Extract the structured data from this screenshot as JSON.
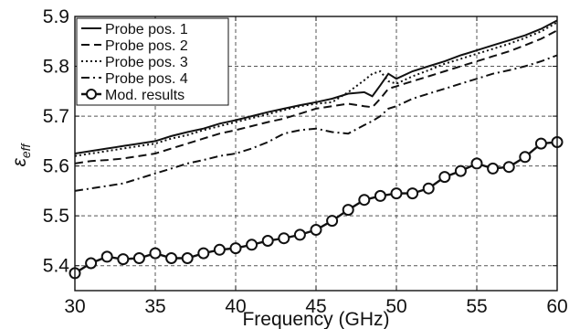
{
  "chart_data": {
    "type": "line",
    "xlabel": "Frequency (GHz)",
    "ylabel": {
      "main": "ε",
      "sub": "eff"
    },
    "xlim": [
      30,
      60
    ],
    "ylim": [
      5.35,
      5.9
    ],
    "xticks": [
      "30",
      "35",
      "40",
      "45",
      "50",
      "55",
      "60"
    ],
    "yticks": [
      "5.4",
      "5.5",
      "5.6",
      "5.7",
      "5.8",
      "5.9"
    ],
    "grid": true,
    "legend_position": "top-left",
    "series": [
      {
        "name": "Probe pos. 1",
        "style": "solid",
        "x": [
          30,
          31,
          32,
          33,
          34,
          35,
          36,
          37,
          38,
          39,
          40,
          41,
          42,
          43,
          44,
          45,
          46,
          47,
          48,
          48.5,
          49,
          49.5,
          50,
          51,
          52,
          53,
          54,
          55,
          56,
          57,
          58,
          59,
          60
        ],
        "values": [
          5.625,
          5.63,
          5.635,
          5.64,
          5.645,
          5.65,
          5.66,
          5.668,
          5.675,
          5.685,
          5.692,
          5.7,
          5.708,
          5.715,
          5.722,
          5.728,
          5.735,
          5.745,
          5.748,
          5.74,
          5.762,
          5.785,
          5.775,
          5.79,
          5.8,
          5.81,
          5.822,
          5.832,
          5.842,
          5.852,
          5.862,
          5.875,
          5.892
        ]
      },
      {
        "name": "Probe pos. 2",
        "style": "dashed",
        "x": [
          30,
          31,
          32,
          33,
          34,
          35,
          36,
          37,
          38,
          39,
          40,
          41,
          42,
          43,
          44,
          45,
          46,
          47,
          48,
          48.5,
          49,
          49.5,
          50,
          51,
          52,
          53,
          54,
          55,
          56,
          57,
          58,
          59,
          60
        ],
        "values": [
          5.605,
          5.61,
          5.612,
          5.615,
          5.62,
          5.625,
          5.635,
          5.645,
          5.655,
          5.665,
          5.672,
          5.68,
          5.688,
          5.695,
          5.705,
          5.715,
          5.72,
          5.725,
          5.72,
          5.718,
          5.735,
          5.755,
          5.76,
          5.77,
          5.78,
          5.79,
          5.8,
          5.81,
          5.82,
          5.83,
          5.842,
          5.855,
          5.872
        ]
      },
      {
        "name": "Probe pos. 3",
        "style": "dotted",
        "x": [
          30,
          31,
          32,
          33,
          34,
          35,
          36,
          37,
          38,
          39,
          40,
          41,
          42,
          43,
          44,
          45,
          46,
          47,
          48,
          48.5,
          49,
          49.5,
          50,
          51,
          52,
          53,
          54,
          55,
          56,
          57,
          58,
          59,
          60
        ],
        "values": [
          5.62,
          5.625,
          5.63,
          5.635,
          5.64,
          5.645,
          5.655,
          5.662,
          5.672,
          5.68,
          5.688,
          5.696,
          5.704,
          5.712,
          5.72,
          5.725,
          5.728,
          5.748,
          5.772,
          5.785,
          5.79,
          5.77,
          5.765,
          5.78,
          5.792,
          5.805,
          5.815,
          5.825,
          5.835,
          5.845,
          5.857,
          5.87,
          5.888
        ]
      },
      {
        "name": "Probe pos. 4",
        "style": "dashdot",
        "x": [
          30,
          31,
          32,
          33,
          34,
          35,
          36,
          37,
          38,
          39,
          40,
          41,
          42,
          43,
          44,
          45,
          46,
          47,
          48,
          48.5,
          49,
          49.5,
          50,
          51,
          52,
          53,
          54,
          55,
          56,
          57,
          58,
          59,
          60
        ],
        "values": [
          5.55,
          5.555,
          5.56,
          5.565,
          5.575,
          5.585,
          5.595,
          5.605,
          5.612,
          5.62,
          5.625,
          5.635,
          5.648,
          5.665,
          5.672,
          5.675,
          5.668,
          5.665,
          5.682,
          5.69,
          5.7,
          5.715,
          5.72,
          5.735,
          5.745,
          5.755,
          5.765,
          5.775,
          5.785,
          5.792,
          5.8,
          5.81,
          5.822
        ]
      },
      {
        "name": "Mod. results",
        "style": "markers",
        "x": [
          30,
          31,
          32,
          33,
          34,
          35,
          36,
          37,
          38,
          39,
          40,
          41,
          42,
          43,
          44,
          45,
          46,
          47,
          48,
          49,
          50,
          51,
          52,
          53,
          54,
          55,
          56,
          57,
          58,
          59,
          60
        ],
        "values": [
          5.385,
          5.405,
          5.418,
          5.413,
          5.415,
          5.425,
          5.415,
          5.415,
          5.425,
          5.432,
          5.435,
          5.442,
          5.45,
          5.455,
          5.462,
          5.472,
          5.49,
          5.512,
          5.532,
          5.54,
          5.545,
          5.545,
          5.555,
          5.578,
          5.59,
          5.605,
          5.595,
          5.598,
          5.618,
          5.645,
          5.648
        ]
      }
    ]
  }
}
